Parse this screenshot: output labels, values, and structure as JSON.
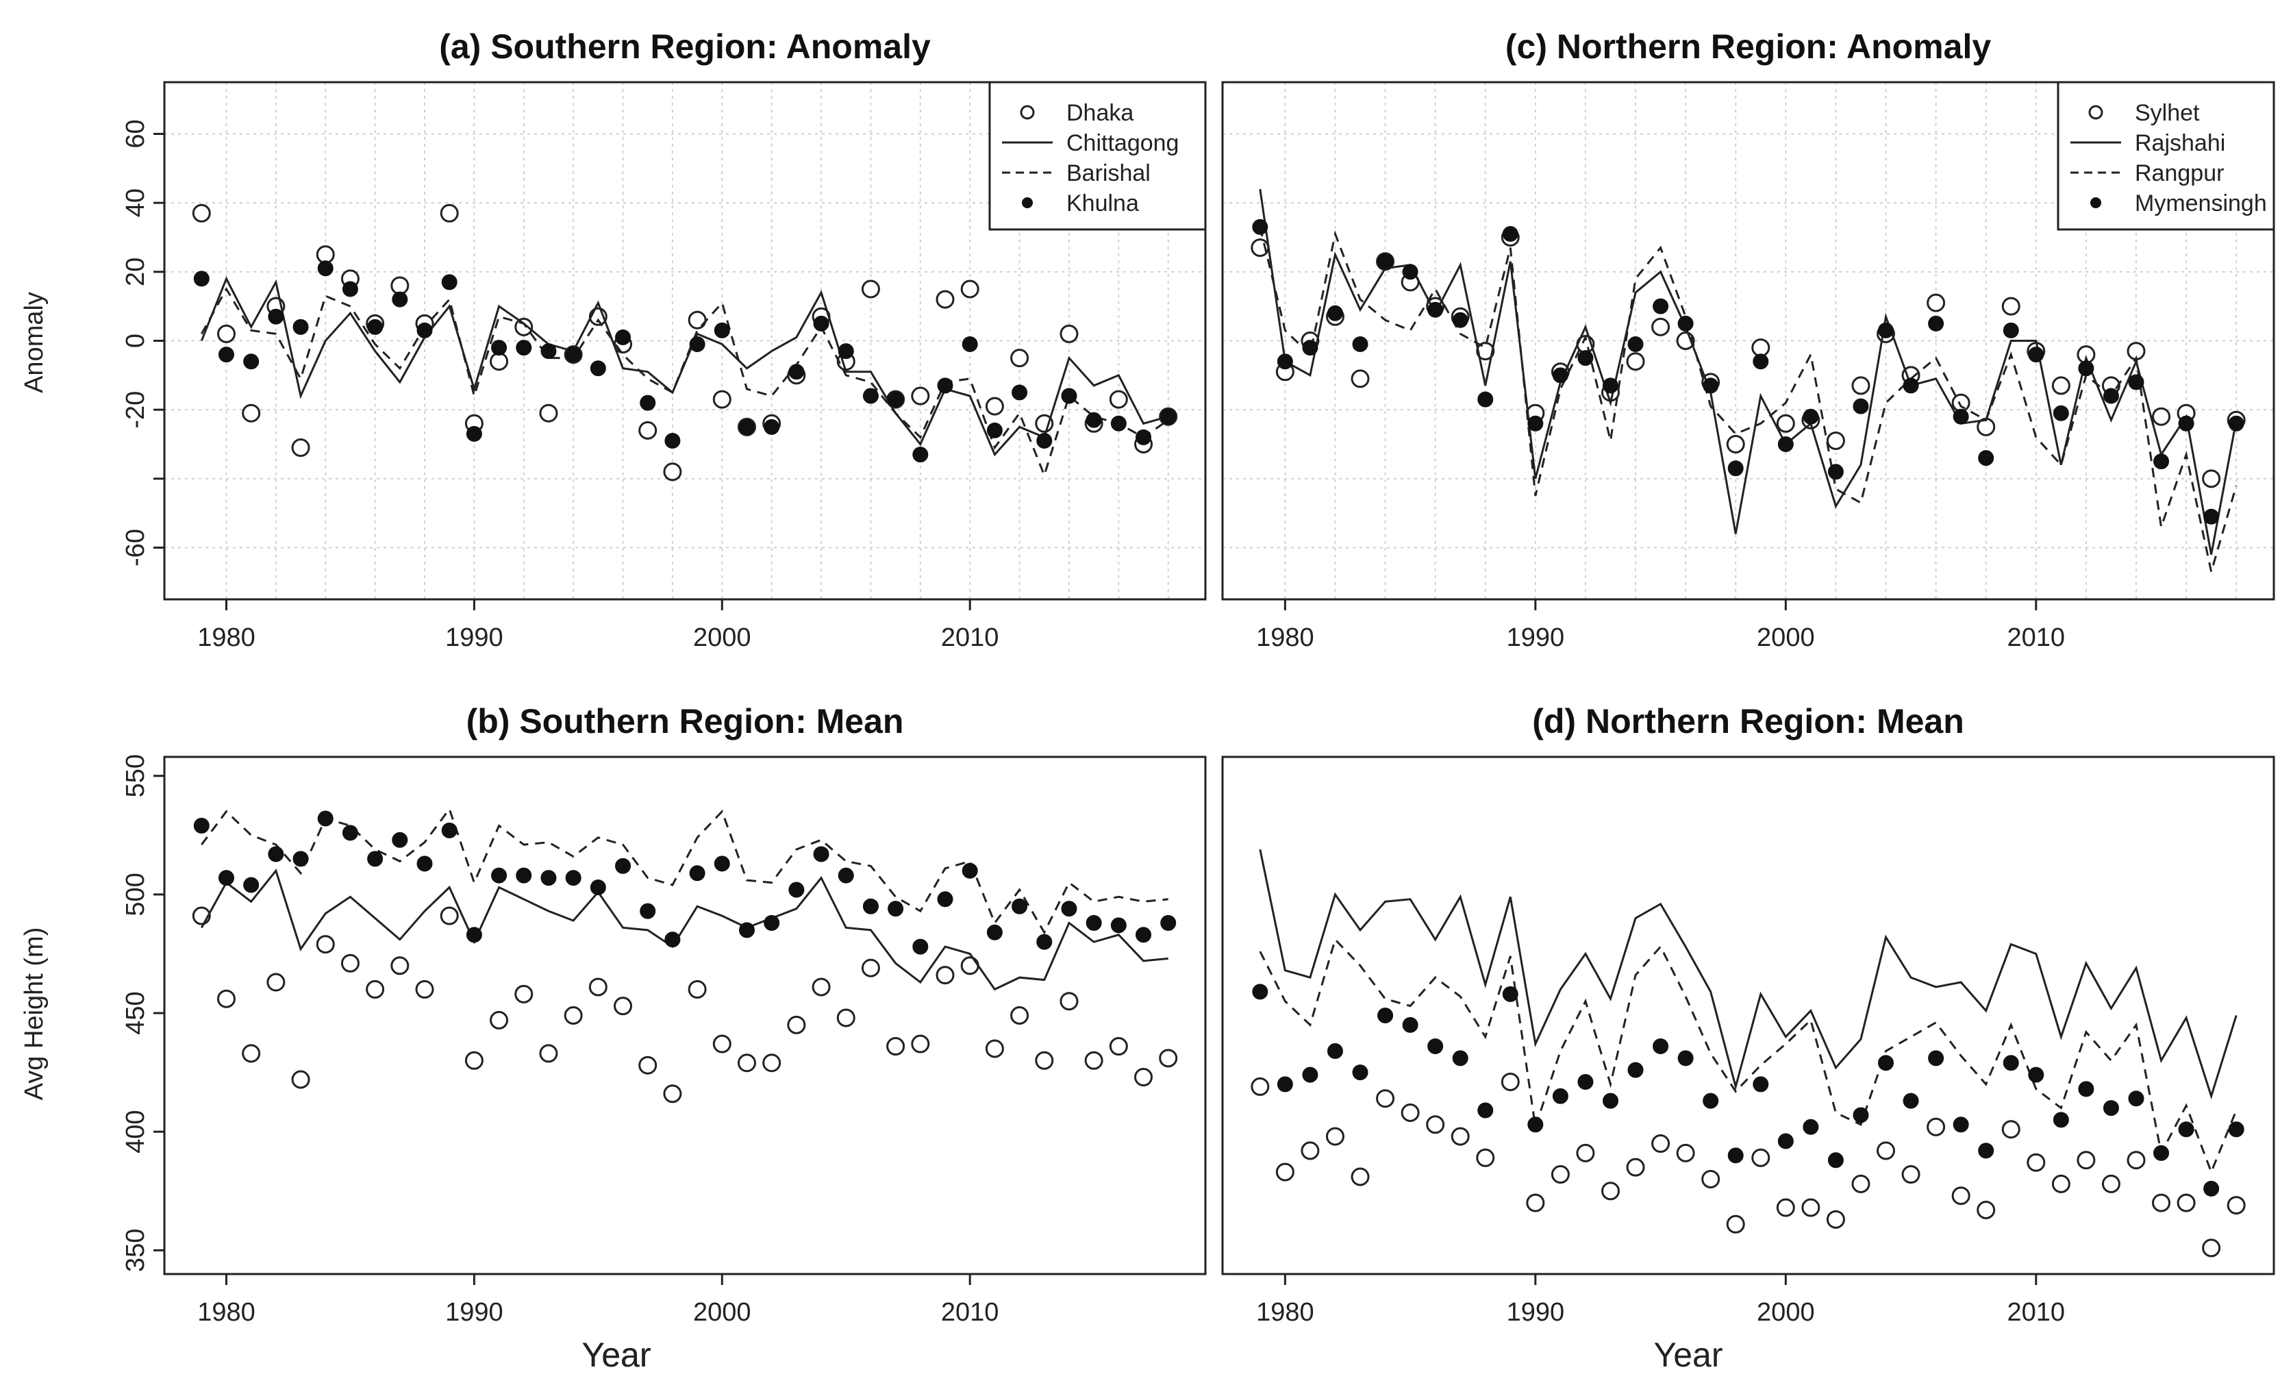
{
  "chart_data": [
    {
      "panel": "a",
      "type": "line",
      "title": "(a) Southern Region: Anomaly",
      "xlabel": "Year",
      "ylabel": "Anomaly",
      "xlim": [
        1977.5,
        2019.5
      ],
      "ylim": [
        -75,
        75
      ],
      "xticks": [
        1980,
        1990,
        2000,
        2010
      ],
      "yticks": [
        -60,
        -40,
        -20,
        0,
        20,
        40,
        60
      ],
      "ytick_labels": [
        "-60",
        "",
        "-20",
        "0",
        "20",
        "40",
        "60"
      ],
      "grid": true,
      "legend_position": "top-right",
      "x": [
        1979,
        1980,
        1981,
        1982,
        1983,
        1984,
        1985,
        1986,
        1987,
        1988,
        1989,
        1990,
        1991,
        1992,
        1993,
        1994,
        1995,
        1996,
        1997,
        1998,
        1999,
        2000,
        2001,
        2002,
        2003,
        2004,
        2005,
        2006,
        2007,
        2008,
        2009,
        2010,
        2011,
        2012,
        2013,
        2014,
        2015,
        2016,
        2017,
        2018
      ],
      "series": [
        {
          "name": "Dhaka",
          "style": "open-circle",
          "values": [
            37,
            2,
            -21,
            10,
            -31,
            25,
            18,
            5,
            16,
            5,
            37,
            -24,
            -6,
            4,
            -21,
            -4,
            7,
            -1,
            -26,
            -38,
            6,
            -17,
            -25,
            -24,
            -10,
            7,
            -6,
            15,
            -17,
            -16,
            12,
            15,
            -19,
            -5,
            -24,
            2,
            -24,
            -17,
            -30,
            -22
          ]
        },
        {
          "name": "Chittagong",
          "style": "solid-line",
          "values": [
            0,
            18,
            4,
            17,
            -16,
            0,
            8,
            -3,
            -12,
            1,
            10,
            -14,
            10,
            5,
            -1,
            -3,
            11,
            -8,
            -9,
            -15,
            2,
            -1,
            -8,
            -3,
            1,
            14,
            -9,
            -9,
            -21,
            -30,
            -14,
            -16,
            -33,
            -25,
            -28,
            -5,
            -13,
            -10,
            -24,
            -22
          ]
        },
        {
          "name": "Barishal",
          "style": "dashed-line",
          "values": [
            2,
            15,
            3,
            2,
            -11,
            13,
            10,
            -1,
            -8,
            4,
            12,
            -16,
            7,
            5,
            -5,
            -5,
            6,
            -4,
            -11,
            -15,
            3,
            11,
            -14,
            -16,
            -7,
            4,
            -10,
            -12,
            -21,
            -28,
            -12,
            -11,
            -31,
            -21,
            -39,
            -16,
            -22,
            -24,
            -28,
            -23
          ]
        },
        {
          "name": "Khulna",
          "style": "filled-circle",
          "values": [
            18,
            -4,
            -6,
            7,
            4,
            21,
            15,
            4,
            12,
            3,
            17,
            -27,
            -2,
            -2,
            -3,
            -4,
            -8,
            1,
            -18,
            -29,
            -1,
            3,
            -25,
            -25,
            -9,
            5,
            -3,
            -16,
            -17,
            -33,
            -13,
            -1,
            -26,
            -15,
            -29,
            -16,
            -23,
            -24,
            -28,
            -22
          ]
        }
      ]
    },
    {
      "panel": "b",
      "type": "line",
      "title": "(b) Southern Region: Mean",
      "xlabel": "Year",
      "ylabel": "Avg Height (m)",
      "xlim": [
        1977.5,
        2019.5
      ],
      "ylim": [
        340,
        558
      ],
      "xticks": [
        1980,
        1990,
        2000,
        2010
      ],
      "yticks": [
        350,
        400,
        450,
        500,
        550
      ],
      "ytick_labels": [
        "350",
        "400",
        "450",
        "500",
        "550"
      ],
      "grid": false,
      "x": [
        1979,
        1980,
        1981,
        1982,
        1983,
        1984,
        1985,
        1986,
        1987,
        1988,
        1989,
        1990,
        1991,
        1992,
        1993,
        1994,
        1995,
        1996,
        1997,
        1998,
        1999,
        2000,
        2001,
        2002,
        2003,
        2004,
        2005,
        2006,
        2007,
        2008,
        2009,
        2010,
        2011,
        2012,
        2013,
        2014,
        2015,
        2016,
        2017,
        2018
      ],
      "series": [
        {
          "name": "Dhaka",
          "style": "open-circle",
          "values": [
            491,
            456,
            433,
            463,
            422,
            479,
            471,
            460,
            470,
            460,
            491,
            430,
            447,
            458,
            433,
            449,
            461,
            453,
            428,
            416,
            460,
            437,
            429,
            429,
            445,
            461,
            448,
            469,
            436,
            437,
            466,
            470,
            435,
            449,
            430,
            455,
            430,
            436,
            423,
            431
          ]
        },
        {
          "name": "Chittagong",
          "style": "solid-line",
          "values": [
            486,
            505,
            497,
            510,
            477,
            492,
            499,
            490,
            481,
            493,
            503,
            480,
            503,
            498,
            493,
            489,
            501,
            486,
            485,
            478,
            495,
            491,
            486,
            490,
            494,
            507,
            486,
            485,
            471,
            463,
            478,
            475,
            460,
            465,
            464,
            488,
            480,
            483,
            472,
            473
          ]
        },
        {
          "name": "Barishal",
          "style": "dashed-line",
          "values": [
            521,
            535,
            525,
            521,
            509,
            532,
            529,
            519,
            514,
            522,
            536,
            505,
            529,
            521,
            522,
            516,
            524,
            521,
            507,
            504,
            524,
            535,
            506,
            505,
            519,
            523,
            514,
            512,
            499,
            493,
            511,
            514,
            488,
            502,
            484,
            505,
            497,
            499,
            497,
            498
          ]
        },
        {
          "name": "Khulna",
          "style": "filled-circle",
          "values": [
            529,
            507,
            504,
            517,
            515,
            532,
            526,
            515,
            523,
            513,
            527,
            483,
            508,
            508,
            507,
            507,
            503,
            512,
            493,
            481,
            509,
            513,
            485,
            488,
            502,
            517,
            508,
            495,
            494,
            478,
            498,
            510,
            484,
            495,
            480,
            494,
            488,
            487,
            483,
            488
          ]
        }
      ]
    },
    {
      "panel": "c",
      "type": "line",
      "title": "(c) Northern Region: Anomaly",
      "xlim": [
        1977.5,
        2019.5
      ],
      "ylim": [
        -75,
        75
      ],
      "xticks": [
        1980,
        1990,
        2000,
        2010
      ],
      "grid": true,
      "legend_position": "top-right",
      "x": [
        1979,
        1980,
        1981,
        1982,
        1983,
        1984,
        1985,
        1986,
        1987,
        1988,
        1989,
        1990,
        1991,
        1992,
        1993,
        1994,
        1995,
        1996,
        1997,
        1998,
        1999,
        2000,
        2001,
        2002,
        2003,
        2004,
        2005,
        2006,
        2007,
        2008,
        2009,
        2010,
        2011,
        2012,
        2013,
        2014,
        2015,
        2016,
        2017,
        2018
      ],
      "series": [
        {
          "name": "Sylhet",
          "style": "open-circle",
          "values": [
            27,
            -9,
            0,
            7,
            -11,
            23,
            17,
            10,
            7,
            -3,
            30,
            -21,
            -9,
            -1,
            -15,
            -6,
            4,
            0,
            -12,
            -30,
            -2,
            -24,
            -23,
            -29,
            -13,
            2,
            -10,
            11,
            -18,
            -25,
            10,
            -3,
            -13,
            -4,
            -13,
            -3,
            -22,
            -21,
            -40,
            -23
          ]
        },
        {
          "name": "Rajshahi",
          "style": "solid-line",
          "values": [
            44,
            -6,
            -10,
            25,
            9,
            21,
            22,
            8,
            22,
            -13,
            23,
            -40,
            -12,
            4,
            -18,
            14,
            20,
            4,
            -15,
            -56,
            -16,
            -30,
            -24,
            -48,
            -36,
            7,
            -13,
            -11,
            -24,
            -23,
            0,
            0,
            -36,
            -5,
            -23,
            -6,
            -33,
            -22,
            -62,
            -23
          ]
        },
        {
          "name": "Rangpur",
          "style": "dashed-line",
          "values": [
            33,
            3,
            -4,
            31,
            12,
            6,
            3,
            15,
            2,
            -2,
            27,
            -45,
            -14,
            1,
            -29,
            18,
            27,
            7,
            -19,
            -27,
            -24,
            -18,
            -4,
            -43,
            -47,
            -18,
            -11,
            -5,
            -19,
            -23,
            -4,
            -28,
            -36,
            -10,
            -16,
            -5,
            -54,
            -33,
            -67,
            -42
          ]
        },
        {
          "name": "Mymensingh",
          "style": "filled-circle",
          "values": [
            33,
            -6,
            -2,
            8,
            -1,
            23,
            20,
            9,
            6,
            -17,
            31,
            -24,
            -10,
            -5,
            -13,
            -1,
            10,
            5,
            -13,
            -37,
            -6,
            -30,
            -22,
            -38,
            -19,
            3,
            -13,
            5,
            -22,
            -34,
            3,
            -4,
            -21,
            -8,
            -16,
            -12,
            -35,
            -24,
            -51,
            -24
          ]
        }
      ]
    },
    {
      "panel": "d",
      "type": "line",
      "title": "(d) Northern Region: Mean",
      "xlim": [
        1977.5,
        2019.5
      ],
      "ylim": [
        340,
        558
      ],
      "xticks": [
        1980,
        1990,
        2000,
        2010
      ],
      "grid": false,
      "x": [
        1979,
        1980,
        1981,
        1982,
        1983,
        1984,
        1985,
        1986,
        1987,
        1988,
        1989,
        1990,
        1991,
        1992,
        1993,
        1994,
        1995,
        1996,
        1997,
        1998,
        1999,
        2000,
        2001,
        2002,
        2003,
        2004,
        2005,
        2006,
        2007,
        2008,
        2009,
        2010,
        2011,
        2012,
        2013,
        2014,
        2015,
        2016,
        2017,
        2018
      ],
      "series": [
        {
          "name": "Sylhet",
          "style": "open-circle",
          "values": [
            419,
            383,
            392,
            398,
            381,
            414,
            408,
            403,
            398,
            389,
            421,
            370,
            382,
            391,
            375,
            385,
            395,
            391,
            380,
            361,
            389,
            368,
            368,
            363,
            378,
            392,
            382,
            402,
            373,
            367,
            401,
            387,
            378,
            388,
            378,
            388,
            370,
            370,
            351,
            369
          ]
        },
        {
          "name": "Rajshahi",
          "style": "solid-line",
          "values": [
            519,
            468,
            465,
            500,
            485,
            497,
            498,
            481,
            499,
            462,
            499,
            437,
            460,
            475,
            456,
            490,
            496,
            478,
            459,
            419,
            458,
            440,
            451,
            427,
            439,
            482,
            465,
            461,
            463,
            451,
            479,
            475,
            440,
            471,
            452,
            469,
            430,
            448,
            415,
            449
          ]
        },
        {
          "name": "Rangpur",
          "style": "dashed-line",
          "values": [
            476,
            455,
            445,
            481,
            470,
            456,
            453,
            465,
            457,
            440,
            474,
            402,
            434,
            455,
            420,
            466,
            478,
            457,
            433,
            417,
            428,
            437,
            447,
            408,
            403,
            434,
            440,
            446,
            432,
            420,
            445,
            418,
            410,
            442,
            430,
            445,
            391,
            411,
            383,
            409
          ]
        },
        {
          "name": "Mymensingh",
          "style": "filled-circle",
          "values": [
            459,
            420,
            424,
            434,
            425,
            449,
            445,
            436,
            431,
            409,
            458,
            403,
            415,
            421,
            413,
            426,
            436,
            431,
            413,
            390,
            420,
            396,
            402,
            388,
            407,
            429,
            413,
            431,
            403,
            392,
            429,
            424,
            405,
            418,
            410,
            414,
            391,
            401,
            376,
            401
          ]
        }
      ]
    }
  ]
}
